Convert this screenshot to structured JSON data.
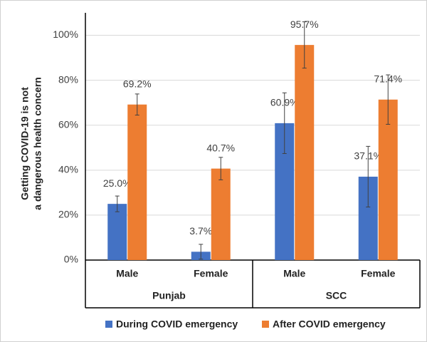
{
  "chart_data": {
    "type": "bar",
    "ylabel": [
      "Getting COVID-19 is not",
      "a dangerous health concern"
    ],
    "groups": [
      {
        "label": "Punjab",
        "categories": [
          "Male",
          "Female"
        ]
      },
      {
        "label": "SCC",
        "categories": [
          "Male",
          "Female"
        ]
      }
    ],
    "series": [
      {
        "name": "During COVID emergency",
        "color": "#4472c4",
        "values": [
          25.0,
          3.7,
          60.9,
          37.1
        ],
        "value_labels": [
          "25.0%",
          "3.7%",
          "60.9%",
          "37.1%"
        ],
        "errors": [
          3.5,
          3.3,
          13.5,
          13.5
        ]
      },
      {
        "name": "After COVID emergency",
        "color": "#ed7d31",
        "values": [
          69.2,
          40.7,
          95.7,
          71.4
        ],
        "value_labels": [
          "69.2%",
          "40.7%",
          "95.7%",
          "71.4%"
        ],
        "errors": [
          4.7,
          5,
          10.3,
          11
        ]
      }
    ],
    "ylim": [
      0,
      110
    ],
    "yticks": [
      {
        "value": 0,
        "label": "0%"
      },
      {
        "value": 20,
        "label": "20%"
      },
      {
        "value": 40,
        "label": "40%"
      },
      {
        "value": 60,
        "label": "60%"
      },
      {
        "value": 80,
        "label": "80%"
      },
      {
        "value": 100,
        "label": "100%"
      }
    ],
    "grid": true
  }
}
